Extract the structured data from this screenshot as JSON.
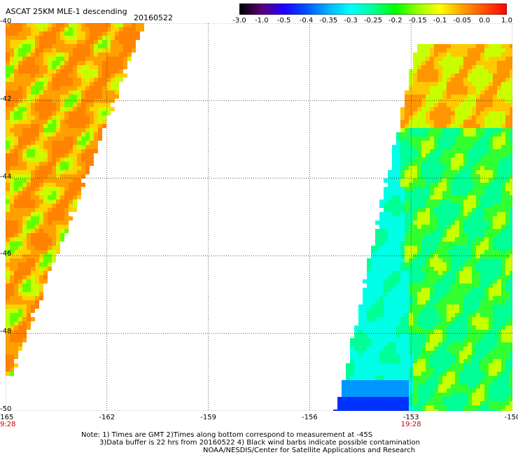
{
  "header": {
    "title": "ASCAT 25KM MLE-1 descending",
    "date": "20160522"
  },
  "colorbar": {
    "labels": [
      "-3.0",
      "-1.0",
      "-0.5",
      "-0.4",
      "-0.35",
      "-0.3",
      "-0.25",
      "-0.2",
      "-0.15",
      "-0.1",
      "-0.05",
      "0.0",
      "1.0"
    ],
    "colors": [
      "#000000",
      "#5a0078",
      "#1e00ff",
      "#0050ff",
      "#00b4ff",
      "#00ffff",
      "#00ff96",
      "#00ff00",
      "#96ff00",
      "#ffff00",
      "#ffa000",
      "#ff5000",
      "#ff0000"
    ]
  },
  "axes": {
    "x_labels": [
      "-165",
      "-162",
      "-159",
      "-156",
      "-153",
      "-150"
    ],
    "y_labels": [
      "-40",
      "-42",
      "-44",
      "-46",
      "-48",
      "-50"
    ],
    "time_labels": [
      "19:28",
      "19:28"
    ]
  },
  "footer": {
    "line1": "Note: 1) Times are GMT 2)Times along bottom correspond to measurement at -45S",
    "line2": "3)Data buffer is 22 hrs from 20160522 4) Black wind barbs indicate possible contamination",
    "line3": "NOAA/NESDIS/Center for Satellite Applications and Research"
  }
}
